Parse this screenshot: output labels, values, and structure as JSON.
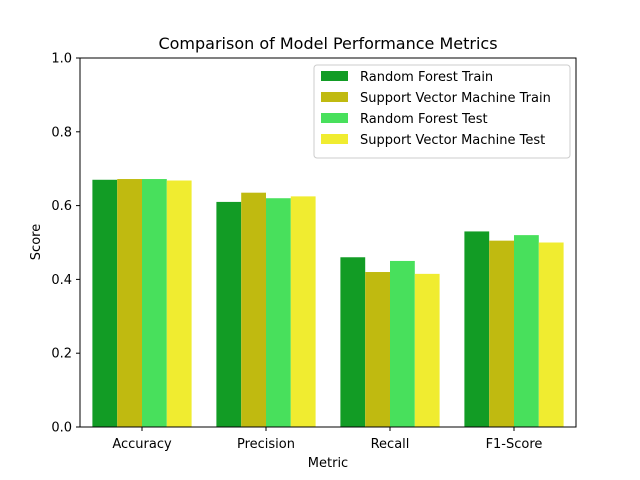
{
  "chart_data": {
    "type": "bar",
    "title": "Comparison of Model Performance Metrics",
    "xlabel": "Metric",
    "ylabel": "Score",
    "ylim": [
      0,
      1.0
    ],
    "yticks": [
      "0.0",
      "0.2",
      "0.4",
      "0.6",
      "0.8",
      "1.0"
    ],
    "categories": [
      "Accuracy",
      "Precision",
      "Recall",
      "F1-Score"
    ],
    "series": [
      {
        "name": "Random Forest Train",
        "color": "#129c25",
        "values": [
          0.67,
          0.61,
          0.46,
          0.53
        ]
      },
      {
        "name": "Support Vector Machine Train",
        "color": "#c0ba10",
        "values": [
          0.672,
          0.635,
          0.42,
          0.505
        ]
      },
      {
        "name": "Random Forest Test",
        "color": "#48e05c",
        "values": [
          0.672,
          0.62,
          0.45,
          0.52
        ]
      },
      {
        "name": "Support Vector Machine Test",
        "color": "#f0ec30",
        "values": [
          0.668,
          0.625,
          0.415,
          0.5
        ]
      }
    ],
    "legend_position": "top-right",
    "grid": false
  }
}
